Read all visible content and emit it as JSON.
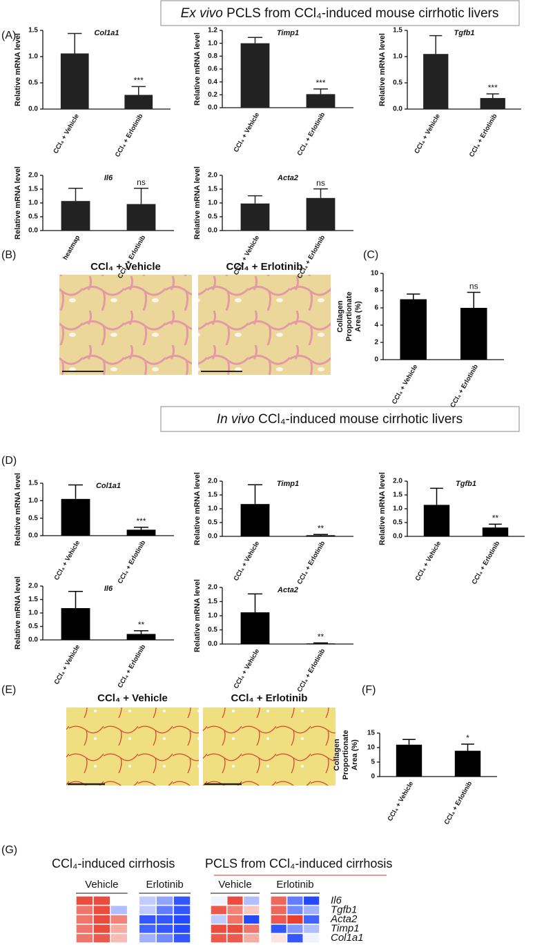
{
  "headers": [
    {
      "italic": "Ex vivo",
      "text": "PCLS from CCl₄-induced mouse cirrhotic livers"
    },
    {
      "italic": "In vivo",
      "text": "CCl₄-induced mouse cirrhotic livers"
    }
  ],
  "panels": [
    "(A)",
    "(B)",
    "(C)",
    "(D)",
    "(E)",
    "(F)",
    "(G)"
  ],
  "histology": {
    "B": [
      "CCl₄ + Vehicle",
      "CCl₄ + Erlotinib"
    ],
    "E": [
      "CCl₄ + Vehicle",
      "CCl₄ + Erlotinib"
    ]
  },
  "chart_data": [
    {
      "type": "bar",
      "title": "Col1a1",
      "ylabel": [
        "Relative mRNA level"
      ],
      "categories": [
        "CCl₄ + Vehicle",
        "CCl₄ + Erlotinib"
      ],
      "values": [
        1.06,
        0.27
      ],
      "errors": [
        0.38,
        0.16
      ],
      "annotations": [
        null,
        "***"
      ],
      "annotation_color": "#d7301f",
      "color": "#222222",
      "ylim": [
        0,
        1.5
      ],
      "yticks": [
        {
          "value": 0,
          "label": "0.0"
        },
        0.5,
        {
          "value": 1,
          "label": "1.0"
        },
        1.5
      ]
    },
    {
      "type": "bar",
      "title": "Timp1",
      "ylabel": [
        "Relative mRNA level"
      ],
      "categories": [
        "CCl₄ + Vehicle",
        "CCl₄ + Erlotinib"
      ],
      "values": [
        1.0,
        0.21
      ],
      "errors": [
        0.09,
        0.08
      ],
      "annotations": [
        null,
        "***"
      ],
      "annotation_color": "#d7301f",
      "color": "#222222",
      "ylim": [
        0,
        1.2
      ],
      "yticks": [
        {
          "value": 0,
          "label": "0.0"
        },
        0.2,
        0.4,
        0.6,
        0.8,
        {
          "value": 1,
          "label": "1.0"
        },
        1.2
      ]
    },
    {
      "type": "bar",
      "title": "Tgfb1",
      "ylabel": [
        "Relative mRNA level"
      ],
      "categories": [
        "CCl₄ + Vehicle",
        "CCl₄ + Erlotinib"
      ],
      "values": [
        1.05,
        0.21
      ],
      "errors": [
        0.35,
        0.08
      ],
      "annotations": [
        null,
        "***"
      ],
      "annotation_color": "#d7301f",
      "color": "#222222",
      "ylim": [
        0,
        1.5
      ],
      "yticks": [
        {
          "value": 0,
          "label": "0.0"
        },
        0.5,
        {
          "value": 1,
          "label": "1.0"
        },
        1.5
      ]
    },
    {
      "type": "bar",
      "title": "Il6",
      "ylabel": [
        "Relative mRNA level"
      ],
      "categories": [
        "heatmap",
        "CCl₄ + Erlotinib"
      ],
      "values": [
        1.07,
        0.96
      ],
      "errors": [
        0.46,
        0.57
      ],
      "annotations": [
        null,
        "ns"
      ],
      "annotation_color": "#444444",
      "color": "#222222",
      "ylim": [
        0,
        2
      ],
      "yticks": [
        {
          "value": 0,
          "label": "0.0"
        },
        0.5,
        {
          "value": 1,
          "label": "1.0"
        },
        1.5,
        {
          "value": 2,
          "label": "2.0"
        }
      ]
    },
    {
      "type": "bar",
      "title": "Acta2",
      "ylabel": [
        "Relative mRNA level"
      ],
      "categories": [
        "CCl₄ + Vehicle",
        "CCl₄ + Erlotinib"
      ],
      "values": [
        0.98,
        1.18
      ],
      "errors": [
        0.28,
        0.33
      ],
      "annotations": [
        null,
        "ns"
      ],
      "annotation_color": "#444444",
      "color": "#222222",
      "ylim": [
        0,
        2
      ],
      "yticks": [
        {
          "value": 0,
          "label": "0.0"
        },
        0.5,
        {
          "value": 1,
          "label": "1.0"
        },
        1.5,
        {
          "value": 2,
          "label": "2.0"
        }
      ]
    },
    {
      "type": "bar",
      "ylabel": [
        "Collagen",
        "Proportionate",
        "Area (%)"
      ],
      "categories": [
        "CCl₄ + Vehicle",
        "CCl₄ + Erlotinib"
      ],
      "values": [
        7.0,
        6.0
      ],
      "errors": [
        0.6,
        1.8
      ],
      "annotations": [
        null,
        "ns"
      ],
      "annotation_color": "#444444",
      "color": "#000000",
      "ylim": [
        0,
        10
      ],
      "yticks": [
        0,
        2,
        4,
        6,
        8,
        10
      ]
    },
    {
      "type": "bar",
      "title": "Col1a1",
      "ylabel": [
        "Relative mRNA level"
      ],
      "categories": [
        "CCl₄ + Vehicle",
        "CCl₄ + Erlotinib"
      ],
      "values": [
        1.05,
        0.17
      ],
      "errors": [
        0.4,
        0.07
      ],
      "annotations": [
        null,
        "***"
      ],
      "annotation_color": "#d7301f",
      "color": "#000000",
      "ylim": [
        0,
        1.5
      ],
      "yticks": [
        {
          "value": 0,
          "label": "0.0"
        },
        0.5,
        {
          "value": 1,
          "label": "1.0"
        },
        1.5
      ]
    },
    {
      "type": "bar",
      "title": "Timp1",
      "ylabel": [
        "Relative mRNA level"
      ],
      "categories": [
        "CCl₄ + Vehicle",
        "CCl₄ + Erlotinib"
      ],
      "values": [
        1.17,
        0.04
      ],
      "errors": [
        0.7,
        0.03
      ],
      "annotations": [
        null,
        "**"
      ],
      "annotation_color": "#d7301f",
      "color": "#000000",
      "ylim": [
        0,
        2
      ],
      "yticks": [
        {
          "value": 0,
          "label": "0.0"
        },
        0.5,
        {
          "value": 1,
          "label": "1.0"
        },
        1.5,
        {
          "value": 2,
          "label": "2.0"
        }
      ]
    },
    {
      "type": "bar",
      "title": "Tgfb1",
      "ylabel": [
        "Relative mRNA level"
      ],
      "categories": [
        "CCl₄ + Vehicle",
        "CCl₄ + Erlotinib"
      ],
      "values": [
        1.14,
        0.32
      ],
      "errors": [
        0.6,
        0.12
      ],
      "annotations": [
        null,
        "**"
      ],
      "annotation_color": "#d7301f",
      "color": "#000000",
      "ylim": [
        0,
        2
      ],
      "yticks": [
        {
          "value": 0,
          "label": "0.0"
        },
        0.5,
        {
          "value": 1,
          "label": "1.0"
        },
        1.5,
        {
          "value": 2,
          "label": "2.0"
        }
      ]
    },
    {
      "type": "bar",
      "title": "Il6",
      "ylabel": [
        "Relative mRNA level"
      ],
      "categories": [
        "CCl₄ + Vehicle",
        "CCl₄ + Erlotinib"
      ],
      "values": [
        1.18,
        0.22
      ],
      "errors": [
        0.62,
        0.12
      ],
      "annotations": [
        null,
        "**"
      ],
      "annotation_color": "#d7301f",
      "color": "#000000",
      "ylim": [
        0,
        2
      ],
      "yticks": [
        {
          "value": 0,
          "label": "0.0"
        },
        0.5,
        {
          "value": 1,
          "label": "1.0"
        },
        1.5,
        {
          "value": 2,
          "label": "2.0"
        }
      ]
    },
    {
      "type": "bar",
      "title": "Acta2",
      "ylabel": [
        "Relative mRNA level"
      ],
      "categories": [
        "CCl₄ + Vehicle",
        "CCl₄ + Erlotinib"
      ],
      "values": [
        1.12,
        0.02
      ],
      "errors": [
        0.65,
        0.02
      ],
      "annotations": [
        null,
        "**"
      ],
      "annotation_color": "#d7301f",
      "color": "#000000",
      "ylim": [
        0,
        2
      ],
      "yticks": [
        {
          "value": 0,
          "label": "0.0"
        },
        0.5,
        {
          "value": 1,
          "label": "1.0"
        },
        1.5,
        {
          "value": 2,
          "label": "2.0"
        }
      ]
    },
    {
      "type": "bar",
      "ylabel": [
        "Collagen",
        "Proportionate",
        "Area (%)"
      ],
      "categories": [
        "CCl₄ + Vehicle",
        "CCl₄ + Erlotinib"
      ],
      "values": [
        11.0,
        8.9
      ],
      "errors": [
        1.8,
        2.3
      ],
      "annotations": [
        null,
        "*"
      ],
      "annotation_color": "#d7301f",
      "color": "#000000",
      "ylim": [
        0,
        15
      ],
      "yticks": [
        0,
        5,
        10,
        15
      ]
    },
    {
      "type": "heatmap",
      "title": "CCl₄-induced cirrhosis",
      "groups": [
        "Vehicle",
        "Erlotinib"
      ],
      "zlim": [
        -1.5,
        1.5
      ],
      "values": [
        [
          1.3,
          1.3,
          0,
          -0.4,
          -0.7,
          -1.3
        ],
        [
          1.0,
          1.3,
          -0.5,
          -0.4,
          -1.0,
          -1.3
        ],
        [
          1.0,
          1.3,
          0.9,
          -1.3,
          -1.3,
          -1.4
        ],
        [
          1.0,
          1.3,
          0.6,
          -1.2,
          -1.3,
          -1.4
        ],
        [
          1.0,
          1.2,
          0.5,
          -0.6,
          -0.9,
          -1.3
        ]
      ]
    },
    {
      "type": "heatmap",
      "title": "PCLS from CCl₄-induced cirrhosis",
      "groups": [
        "Vehicle",
        "Erlotinib"
      ],
      "rows": [
        "Il6",
        "Tgfb1",
        "Acta2",
        "Timp1",
        "Col1a1"
      ],
      "zlim": [
        -1.5,
        1.5
      ],
      "values": [
        [
          -0.1,
          1.3,
          -0.5,
          1.1,
          -1.0,
          -1.4
        ],
        [
          1.2,
          0.9,
          0.4,
          1.1,
          -0.9,
          -0.6
        ],
        [
          -0.4,
          1.0,
          -1.4,
          1.2,
          1.4,
          -1.2
        ],
        [
          1.3,
          1.3,
          1.0,
          -1.3,
          -0.8,
          -0.5
        ],
        [
          1.2,
          1.2,
          0.6,
          0.2,
          -1.3,
          -0.1
        ]
      ]
    }
  ]
}
